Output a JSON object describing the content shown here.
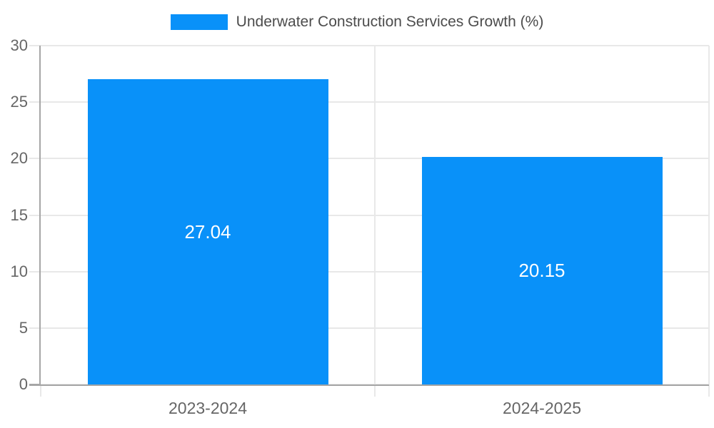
{
  "legend": {
    "label": "Underwater Construction Services Growth (%)"
  },
  "chart_data": {
    "type": "bar",
    "title": "Underwater Construction Services Growth (%)",
    "categories": [
      "2023-2024",
      "2024-2025"
    ],
    "values": [
      27.04,
      20.15
    ],
    "value_labels": [
      "27.04",
      "20.15"
    ],
    "xlabel": "",
    "ylabel": "",
    "ylim": [
      0,
      30
    ],
    "yticks": [
      0,
      5,
      10,
      15,
      20,
      25,
      30
    ],
    "grid": true,
    "legend_position": "top-center",
    "bar_width_fraction": 0.72,
    "colors": {
      "bar": "#0991F9",
      "grid": "#e8e8e8",
      "axis": "#a6a6a6",
      "axis_text": "#666666",
      "legend_text": "#4c4c4c",
      "value_label": "#ffffff",
      "background": "#ffffff"
    }
  }
}
